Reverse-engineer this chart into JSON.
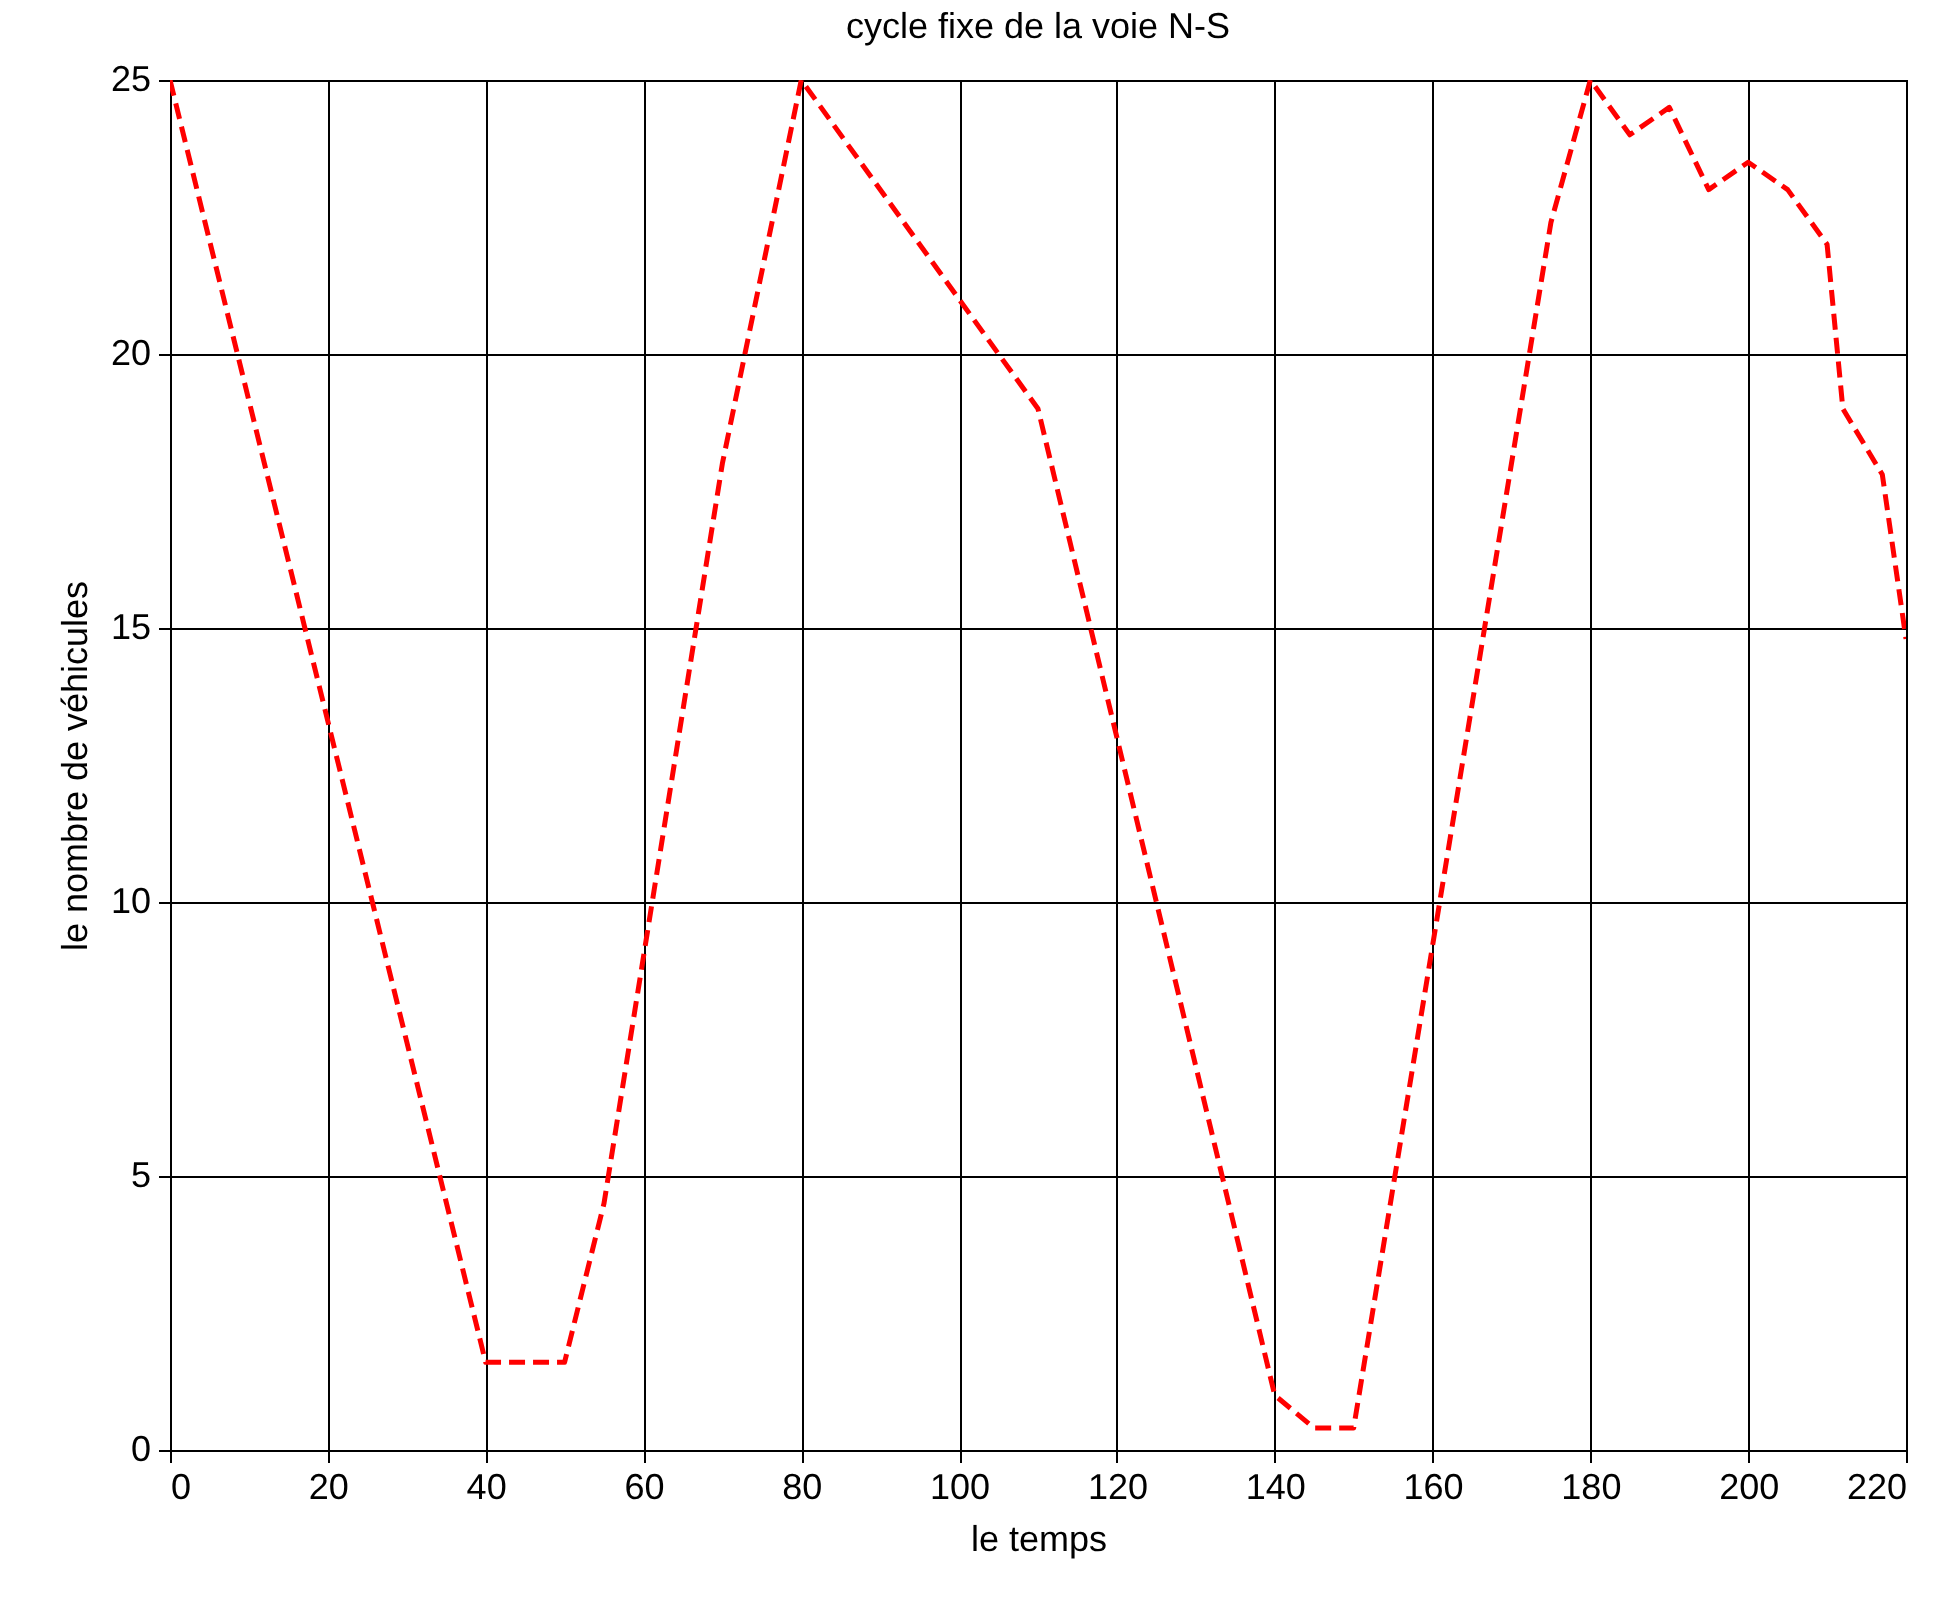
{
  "chart_data": {
    "type": "line",
    "title": "cycle fixe de la voie N-S",
    "xlabel": "le temps",
    "ylabel": "le nombre de véhicules",
    "x": [
      0,
      40,
      50,
      55,
      70,
      80,
      110,
      140,
      145,
      150,
      175,
      180,
      185,
      190,
      195,
      200,
      205,
      210,
      212,
      217,
      220
    ],
    "series": [
      {
        "color": "#ff0000",
        "values": [
          25,
          1.6,
          1.6,
          4.5,
          18,
          25,
          19,
          1,
          0.4,
          0.4,
          22.4,
          25,
          24,
          24.5,
          23,
          23.5,
          23,
          22,
          19,
          17.8,
          14.8
        ]
      }
    ],
    "xlim": [
      0,
      220
    ],
    "xticks": [
      0,
      20,
      40,
      60,
      80,
      100,
      120,
      140,
      160,
      180,
      200,
      220
    ],
    "ylim": [
      0,
      25
    ],
    "yticks": [
      0,
      5,
      10,
      15,
      20,
      25
    ],
    "grid": true,
    "line_style": "dashed"
  }
}
